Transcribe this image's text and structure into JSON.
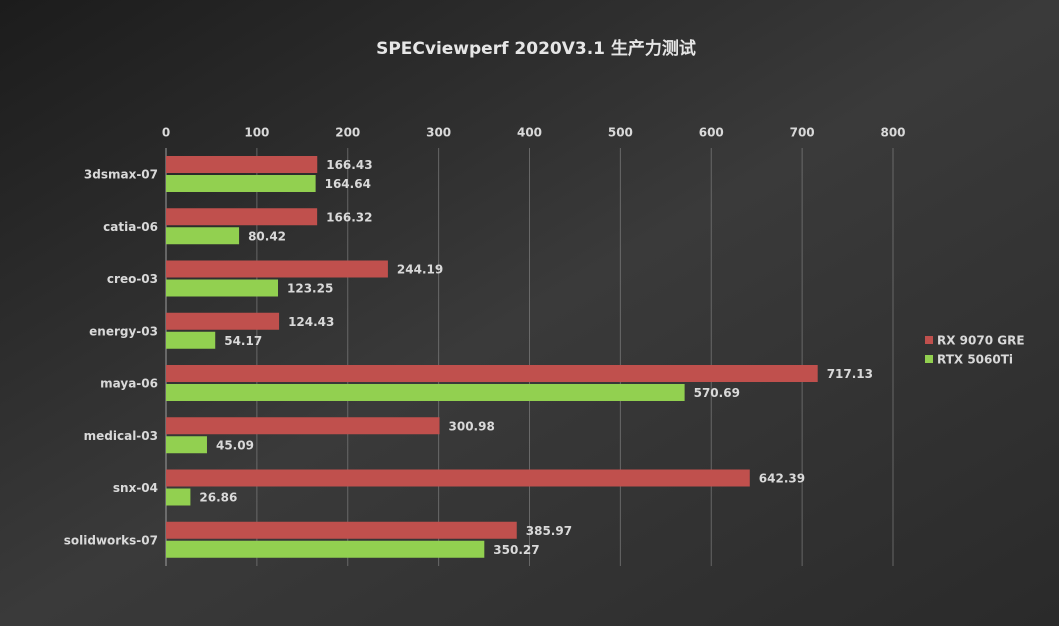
{
  "chart_data": {
    "type": "hbar",
    "title": "SPECviewperf 2020V3.1 生产力测试",
    "categories": [
      "3dsmax-07",
      "catia-06",
      "creo-03",
      "energy-03",
      "maya-06",
      "medical-03",
      "snx-04",
      "solidworks-07"
    ],
    "series": [
      {
        "name": "RX 9070 GRE",
        "color": "#c0504d",
        "values": [
          166.43,
          166.32,
          244.19,
          124.43,
          717.13,
          300.98,
          642.39,
          385.97
        ]
      },
      {
        "name": "RTX 5060Ti",
        "color": "#92d050",
        "values": [
          164.64,
          80.42,
          123.25,
          54.17,
          570.69,
          45.09,
          26.86,
          350.27
        ]
      }
    ],
    "xlim": [
      0,
      800
    ],
    "xticks": [
      0,
      100,
      200,
      300,
      400,
      500,
      600,
      700,
      800
    ],
    "grid": true,
    "legend": "right"
  }
}
